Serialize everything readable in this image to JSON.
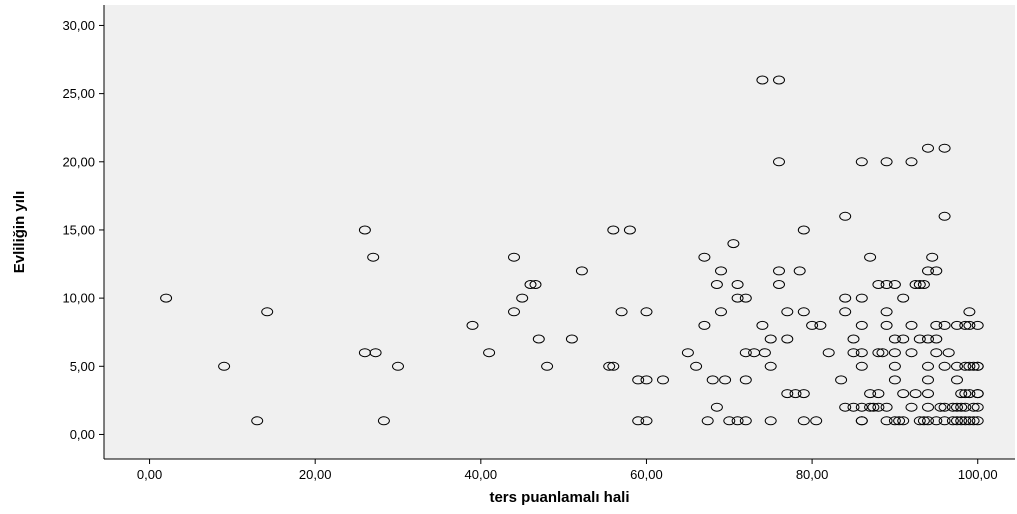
{
  "chart_data": {
    "type": "scatter",
    "xlabel": "ters puanlamalı hali",
    "ylabel": "Evliliğin yılı",
    "xlim": [
      -5.5,
      104.5
    ],
    "ylim": [
      -1.8,
      31.5
    ],
    "x_ticks": [
      {
        "value": 0,
        "label": "0,00"
      },
      {
        "value": 20,
        "label": "20,00"
      },
      {
        "value": 40,
        "label": "40,00"
      },
      {
        "value": 60,
        "label": "60,00"
      },
      {
        "value": 80,
        "label": "80,00"
      },
      {
        "value": 100,
        "label": "100,00"
      }
    ],
    "y_ticks": [
      {
        "value": 0,
        "label": "0,00"
      },
      {
        "value": 5,
        "label": "5,00"
      },
      {
        "value": 10,
        "label": "10,00"
      },
      {
        "value": 15,
        "label": "15,00"
      },
      {
        "value": 20,
        "label": "20,00"
      },
      {
        "value": 25,
        "label": "25,00"
      },
      {
        "value": 30,
        "label": "30,00"
      }
    ],
    "grid": false,
    "plot_background": "#f0f0f0",
    "marker_color": "#000000",
    "marker": "hollow-circle",
    "points": [
      [
        2,
        10
      ],
      [
        9,
        5
      ],
      [
        13,
        1
      ],
      [
        14.2,
        9
      ],
      [
        26,
        15
      ],
      [
        26,
        6
      ],
      [
        27,
        13
      ],
      [
        27.3,
        6
      ],
      [
        28.3,
        1
      ],
      [
        30,
        5
      ],
      [
        39,
        8
      ],
      [
        41,
        6
      ],
      [
        44,
        13
      ],
      [
        44,
        9
      ],
      [
        45,
        10
      ],
      [
        46,
        11
      ],
      [
        46.6,
        11
      ],
      [
        47,
        7
      ],
      [
        48,
        5
      ],
      [
        51,
        7
      ],
      [
        52.2,
        12
      ],
      [
        55.5,
        5
      ],
      [
        56,
        5
      ],
      [
        56,
        15
      ],
      [
        57,
        9
      ],
      [
        58,
        15
      ],
      [
        59,
        4
      ],
      [
        59,
        1
      ],
      [
        60,
        4
      ],
      [
        60,
        9
      ],
      [
        60,
        1
      ],
      [
        62,
        4
      ],
      [
        65,
        6
      ],
      [
        66,
        5
      ],
      [
        67,
        13
      ],
      [
        67,
        8
      ],
      [
        67.4,
        1
      ],
      [
        68,
        4
      ],
      [
        68.5,
        2
      ],
      [
        68.5,
        11
      ],
      [
        69,
        12
      ],
      [
        69,
        9
      ],
      [
        69.5,
        4
      ],
      [
        70,
        1
      ],
      [
        70.5,
        14
      ],
      [
        71,
        11
      ],
      [
        71,
        10
      ],
      [
        71,
        1
      ],
      [
        72,
        10
      ],
      [
        72,
        6
      ],
      [
        72,
        4
      ],
      [
        72,
        1
      ],
      [
        73,
        6
      ],
      [
        74,
        26
      ],
      [
        74,
        8
      ],
      [
        74.3,
        6
      ],
      [
        75,
        5
      ],
      [
        75,
        7
      ],
      [
        75,
        1
      ],
      [
        76,
        26
      ],
      [
        76,
        20
      ],
      [
        76,
        12
      ],
      [
        76,
        11
      ],
      [
        77,
        9
      ],
      [
        77,
        7
      ],
      [
        77,
        3
      ],
      [
        78,
        3
      ],
      [
        78.5,
        12
      ],
      [
        79,
        15
      ],
      [
        79,
        9
      ],
      [
        79,
        3
      ],
      [
        79,
        1
      ],
      [
        80,
        8
      ],
      [
        80.5,
        1
      ],
      [
        81,
        8
      ],
      [
        82,
        6
      ],
      [
        83.5,
        4
      ],
      [
        84,
        16
      ],
      [
        84,
        10
      ],
      [
        84,
        9
      ],
      [
        84,
        2
      ],
      [
        85,
        7
      ],
      [
        85,
        6
      ],
      [
        85,
        2
      ],
      [
        86,
        20
      ],
      [
        86,
        10
      ],
      [
        86,
        8
      ],
      [
        86,
        6
      ],
      [
        86,
        5
      ],
      [
        86,
        2
      ],
      [
        86,
        1
      ],
      [
        86,
        1
      ],
      [
        87,
        13
      ],
      [
        87,
        3
      ],
      [
        87,
        2
      ],
      [
        87.4,
        2
      ],
      [
        88,
        11
      ],
      [
        88,
        6
      ],
      [
        88,
        3
      ],
      [
        88,
        2
      ],
      [
        88.5,
        6
      ],
      [
        89,
        20
      ],
      [
        89,
        11
      ],
      [
        89,
        9
      ],
      [
        89,
        8
      ],
      [
        89,
        2
      ],
      [
        89,
        1
      ],
      [
        90,
        11
      ],
      [
        90,
        7
      ],
      [
        90,
        6
      ],
      [
        90,
        5
      ],
      [
        90,
        4
      ],
      [
        90,
        1
      ],
      [
        90.5,
        1
      ],
      [
        91,
        10
      ],
      [
        91,
        7
      ],
      [
        91,
        3
      ],
      [
        91,
        1
      ],
      [
        92,
        20
      ],
      [
        92,
        8
      ],
      [
        92,
        6
      ],
      [
        92,
        2
      ],
      [
        92.5,
        11
      ],
      [
        92.5,
        3
      ],
      [
        93,
        11
      ],
      [
        93,
        7
      ],
      [
        93,
        1
      ],
      [
        93.5,
        11
      ],
      [
        93.5,
        1
      ],
      [
        94,
        21
      ],
      [
        94,
        12
      ],
      [
        94,
        7
      ],
      [
        94,
        5
      ],
      [
        94,
        4
      ],
      [
        94,
        3
      ],
      [
        94,
        2
      ],
      [
        94,
        1
      ],
      [
        94.5,
        13
      ],
      [
        95,
        12
      ],
      [
        95,
        8
      ],
      [
        95,
        7
      ],
      [
        95,
        6
      ],
      [
        95,
        1
      ],
      [
        95.5,
        2
      ],
      [
        96,
        21
      ],
      [
        96,
        16
      ],
      [
        96,
        8
      ],
      [
        96,
        5
      ],
      [
        96,
        2
      ],
      [
        96,
        1
      ],
      [
        96.5,
        6
      ],
      [
        97,
        2
      ],
      [
        97,
        1
      ],
      [
        97.5,
        8
      ],
      [
        97.5,
        5
      ],
      [
        97.5,
        4
      ],
      [
        97.5,
        2
      ],
      [
        97.5,
        1
      ],
      [
        98,
        3
      ],
      [
        98,
        2
      ],
      [
        98,
        1
      ],
      [
        98.5,
        8
      ],
      [
        98.5,
        5
      ],
      [
        98.5,
        3
      ],
      [
        98.5,
        2
      ],
      [
        98.5,
        1
      ],
      [
        99,
        9
      ],
      [
        99,
        8
      ],
      [
        99,
        5
      ],
      [
        99,
        3
      ],
      [
        99,
        1
      ],
      [
        99.5,
        5
      ],
      [
        99.5,
        2
      ],
      [
        99.5,
        1
      ],
      [
        100,
        8
      ],
      [
        100,
        5
      ],
      [
        100,
        5
      ],
      [
        100,
        3
      ],
      [
        100,
        3
      ],
      [
        100,
        2
      ],
      [
        100,
        1
      ]
    ]
  }
}
